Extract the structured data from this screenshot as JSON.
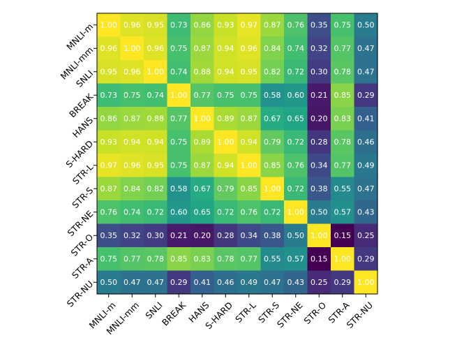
{
  "chart_data": {
    "type": "heatmap",
    "title": "",
    "xlabel": "",
    "ylabel": "",
    "colormap": "viridis",
    "value_range": [
      0.15,
      1.0
    ],
    "cell_text_color": "#ffffff",
    "rows": [
      "MNLI-m",
      "MNLI-mm",
      "SNLI",
      "BREAK",
      "HANS",
      "S-HARD",
      "STR-L",
      "STR-S",
      "STR-NE",
      "STR-O",
      "STR-A",
      "STR-NU"
    ],
    "columns": [
      "MNLI-m",
      "MNLI-mm",
      "SNLI",
      "BREAK",
      "HANS",
      "S-HARD",
      "STR-L",
      "STR-S",
      "STR-NE",
      "STR-O",
      "STR-A",
      "STR-NU"
    ],
    "values": [
      [
        1.0,
        0.96,
        0.95,
        0.73,
        0.86,
        0.93,
        0.97,
        0.87,
        0.76,
        0.35,
        0.75,
        0.5
      ],
      [
        0.96,
        1.0,
        0.96,
        0.75,
        0.87,
        0.94,
        0.96,
        0.84,
        0.74,
        0.32,
        0.77,
        0.47
      ],
      [
        0.95,
        0.96,
        1.0,
        0.74,
        0.88,
        0.94,
        0.95,
        0.82,
        0.72,
        0.3,
        0.78,
        0.47
      ],
      [
        0.73,
        0.75,
        0.74,
        1.0,
        0.77,
        0.75,
        0.75,
        0.58,
        0.6,
        0.21,
        0.85,
        0.29
      ],
      [
        0.86,
        0.87,
        0.88,
        0.77,
        1.0,
        0.89,
        0.87,
        0.67,
        0.65,
        0.2,
        0.83,
        0.41
      ],
      [
        0.93,
        0.94,
        0.94,
        0.75,
        0.89,
        1.0,
        0.94,
        0.79,
        0.72,
        0.28,
        0.78,
        0.46
      ],
      [
        0.97,
        0.96,
        0.95,
        0.75,
        0.87,
        0.94,
        1.0,
        0.85,
        0.76,
        0.34,
        0.77,
        0.49
      ],
      [
        0.87,
        0.84,
        0.82,
        0.58,
        0.67,
        0.79,
        0.85,
        1.0,
        0.72,
        0.38,
        0.55,
        0.47
      ],
      [
        0.76,
        0.74,
        0.72,
        0.6,
        0.65,
        0.72,
        0.76,
        0.72,
        1.0,
        0.5,
        0.57,
        0.43
      ],
      [
        0.35,
        0.32,
        0.3,
        0.21,
        0.2,
        0.28,
        0.34,
        0.38,
        0.5,
        1.0,
        0.15,
        0.25
      ],
      [
        0.75,
        0.77,
        0.78,
        0.85,
        0.83,
        0.78,
        0.77,
        0.55,
        0.57,
        0.15,
        1.0,
        0.29
      ],
      [
        0.5,
        0.47,
        0.47,
        0.29,
        0.41,
        0.46,
        0.49,
        0.47,
        0.43,
        0.25,
        0.29,
        1.0
      ]
    ],
    "grid": false,
    "legend": "none"
  }
}
